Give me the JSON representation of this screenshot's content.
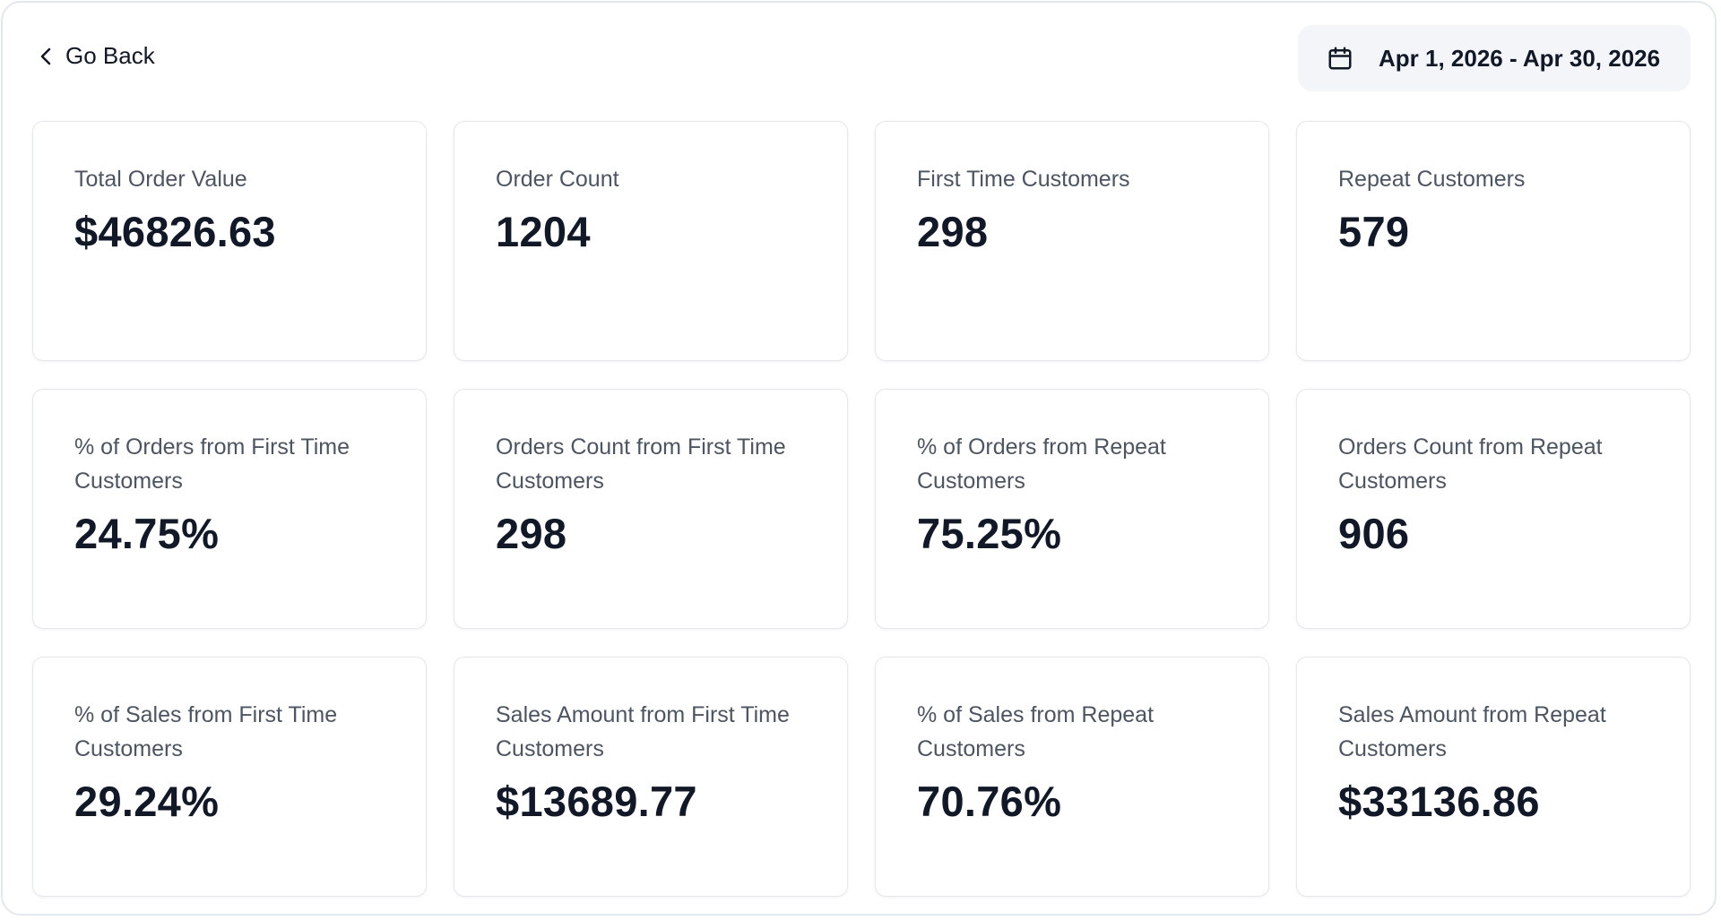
{
  "header": {
    "back_label": "Go Back",
    "date_range": "Apr 1, 2026 - Apr 30, 2026"
  },
  "cards": [
    {
      "label": "Total Order Value",
      "value": "$46826.63"
    },
    {
      "label": "Order Count",
      "value": "1204"
    },
    {
      "label": "First Time Customers",
      "value": "298"
    },
    {
      "label": "Repeat Customers",
      "value": "579"
    },
    {
      "label": "% of Orders from First Time Customers",
      "value": "24.75%"
    },
    {
      "label": "Orders Count from First Time Customers",
      "value": "298"
    },
    {
      "label": "% of Orders from Repeat Customers",
      "value": "75.25%"
    },
    {
      "label": "Orders Count from Repeat Customers",
      "value": "906"
    },
    {
      "label": "% of Sales from First Time Customers",
      "value": "29.24%"
    },
    {
      "label": "Sales Amount from First Time Customers",
      "value": "$13689.77"
    },
    {
      "label": "% of Sales from Repeat Customers",
      "value": "70.76%"
    },
    {
      "label": "Sales Amount from Repeat Customers",
      "value": "$33136.86"
    }
  ]
}
